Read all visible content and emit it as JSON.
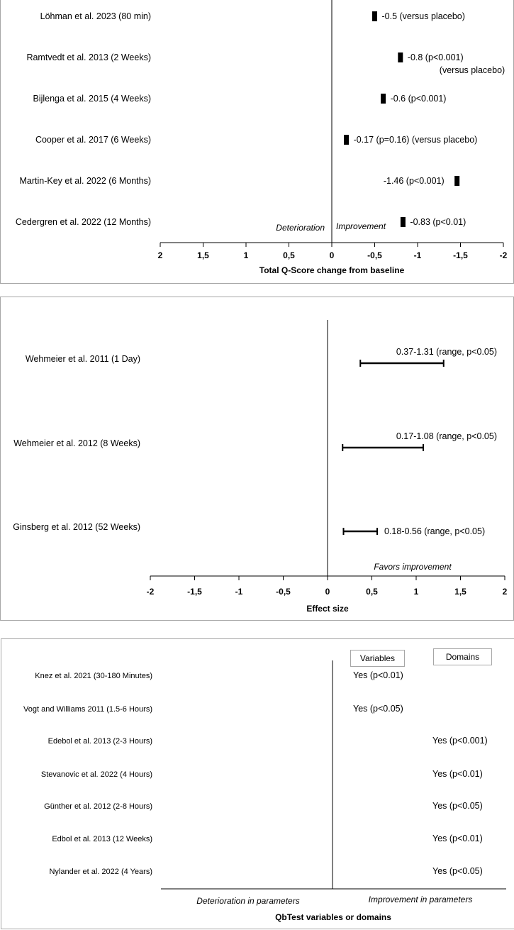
{
  "chart_data": [
    {
      "type": "forest",
      "studies": [
        {
          "label": "Löhman et al. 2023 (80 min)",
          "value": -0.5,
          "annotation": [
            "-0.5 (versus placebo)"
          ]
        },
        {
          "label": "Ramtvedt et al. 2013 (2 Weeks)",
          "value": -0.8,
          "annotation": [
            "-0.8 (p<0.001)",
            "(versus placebo)"
          ]
        },
        {
          "label": "Bijlenga et al. 2015 (4 Weeks)",
          "value": -0.6,
          "annotation": [
            "-0.6 (p<0.001)"
          ]
        },
        {
          "label": "Cooper et al. 2017 (6 Weeks)",
          "value": -0.17,
          "annotation": [
            "-0.17 (p=0.16) (versus placebo)"
          ]
        },
        {
          "label": "Martin-Key et al. 2022 (6 Months)",
          "value": -1.46,
          "annotation": [
            "-1.46 (p<0.001)"
          ],
          "annotation_side": "left"
        },
        {
          "label": "Cedergren et al. 2022 (12 Months)",
          "value": -0.83,
          "annotation": [
            "-0.83 (p<0.01)"
          ]
        }
      ],
      "xticks": [
        "2",
        "1,5",
        "1",
        "0,5",
        "0",
        "-0,5",
        "-1",
        "-1,5",
        "-2"
      ],
      "xlim": [
        2,
        -2
      ],
      "xlabel": "Total Q-Score change from baseline",
      "left_note": "Deterioration",
      "right_note": "Improvement"
    },
    {
      "type": "forest",
      "studies": [
        {
          "label": "Wehmeier et al. 2011 (1 Day)",
          "low": 0.37,
          "high": 1.31,
          "annotation": "0.37-1.31 (range, p<0.05)"
        },
        {
          "label": "Wehmeier et al. 2012 (8 Weeks)",
          "low": 0.17,
          "high": 1.08,
          "annotation": "0.17-1.08 (range, p<0.05)"
        },
        {
          "label": "Ginsberg et al. 2012 (52 Weeks)",
          "low": 0.18,
          "high": 0.56,
          "annotation": "0.18-0.56 (range, p<0.05)"
        }
      ],
      "xticks": [
        "-2",
        "-1,5",
        "-1",
        "-0,5",
        "0",
        "0,5",
        "1",
        "1,5",
        "2"
      ],
      "xlim": [
        -2,
        2
      ],
      "xlabel": "Effect size",
      "right_note": "Favors improvement"
    },
    {
      "type": "table",
      "columns": [
        "Variables",
        "Domains"
      ],
      "studies": [
        {
          "label": "Knez et al. 2021 (30-180 Minutes)",
          "column": 0,
          "result": "Yes (p<0.01)"
        },
        {
          "label": "Vogt and Williams 2011 (1.5-6 Hours)",
          "column": 0,
          "result": "Yes (p<0.05)"
        },
        {
          "label": "Edebol et al. 2013 (2-3 Hours)",
          "column": 1,
          "result": "Yes (p<0.001)"
        },
        {
          "label": "Stevanovic et al. 2022 (4 Hours)",
          "column": 1,
          "result": "Yes (p<0.01)"
        },
        {
          "label": "Günther et al. 2012 (2-8 Hours)",
          "column": 1,
          "result": "Yes (p<0.05)"
        },
        {
          "label": "Edbol et al. 2013 (12 Weeks)",
          "column": 1,
          "result": "Yes (p<0.01)"
        },
        {
          "label": "Nylander et al. 2022 (4 Years)",
          "column": 1,
          "result": "Yes (p<0.05)"
        }
      ],
      "left_note": "Deterioration  in parameters",
      "right_note": "Improvement  in parameters",
      "xlabel": "QbTest variables or domains"
    }
  ]
}
